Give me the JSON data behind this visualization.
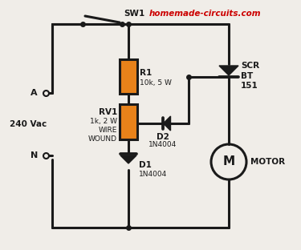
{
  "bg_color": "#f0ede8",
  "line_color": "#1a1a1a",
  "orange_color": "#e8821a",
  "red_text_color": "#cc0000",
  "title_text": "homemade-circuits.com",
  "lw": 2.2,
  "component_labels": {
    "SW1": "SW1",
    "R1": "R1\n10k, 5 W",
    "RV1": "RV1\n1k, 2 W\nWIRE\nWOUND",
    "D2": "D2\n1N4004",
    "D1": "D1\n1N4004",
    "SCR": "SCR\nBT\n151",
    "MOTOR": "MOTOR",
    "A": "A",
    "N": "N",
    "vac": "240 Vac"
  }
}
